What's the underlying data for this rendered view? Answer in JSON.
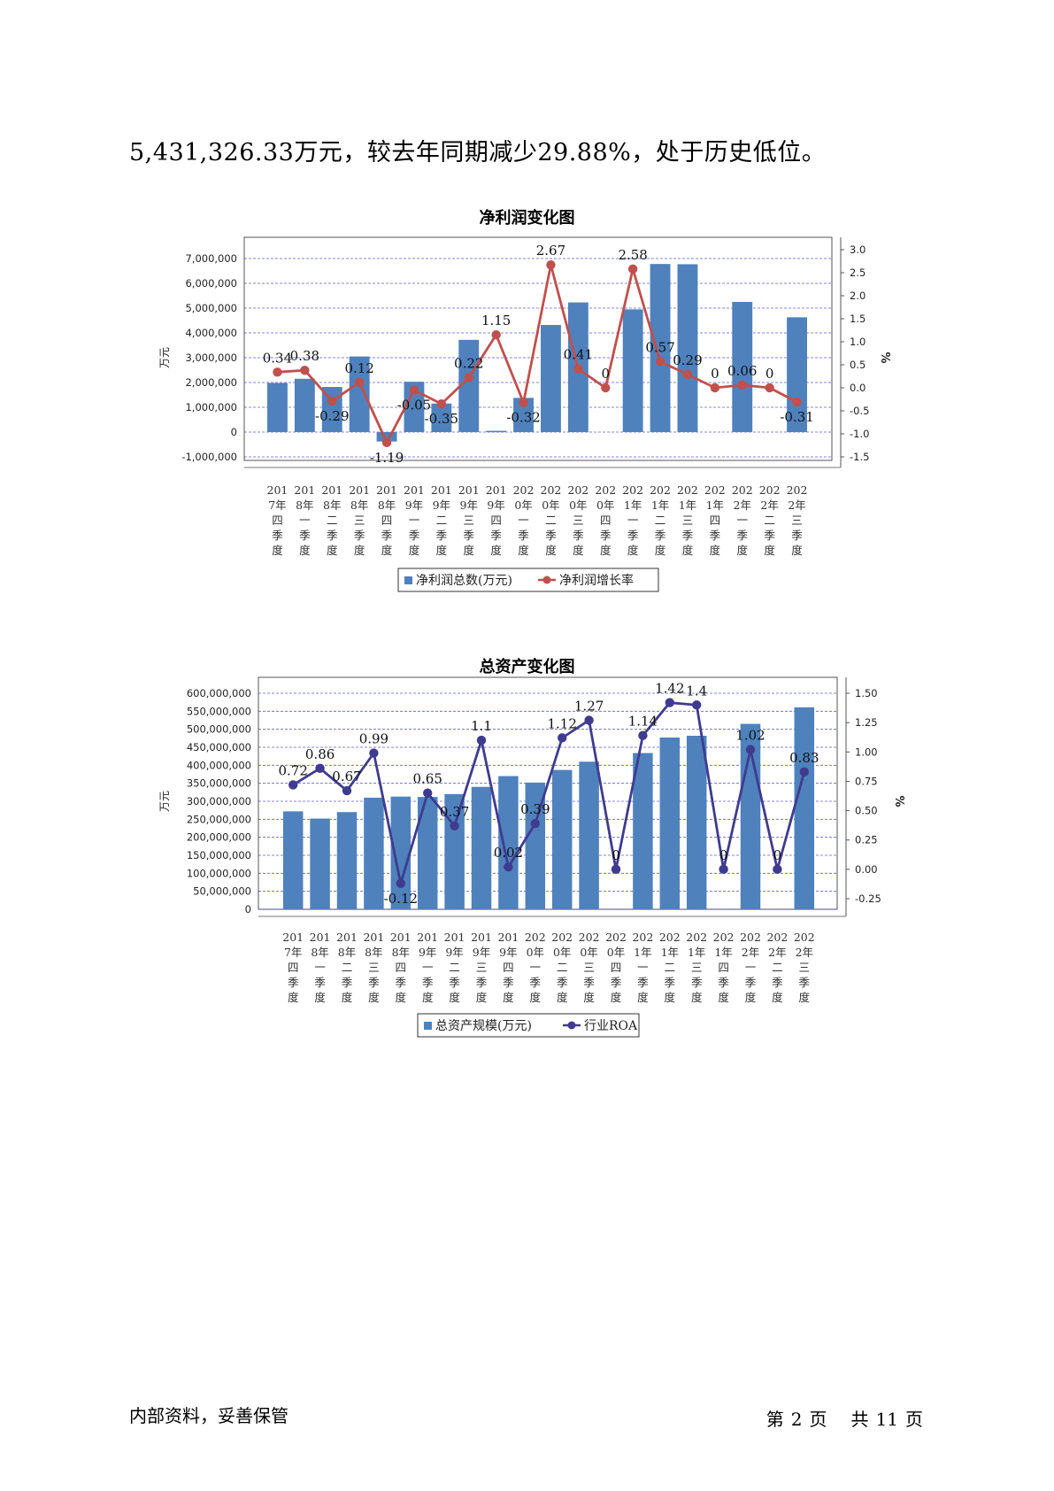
{
  "intro_text": "5,431,326.33万元，较去年同期减少29.88%，处于历史低位。",
  "footer": {
    "left": "内部资料，妥善保管",
    "page_prefix": "第",
    "page_num": "2",
    "page_suffix": "页",
    "total_prefix": "共",
    "total_num": "11",
    "total_suffix": "页"
  },
  "colors": {
    "bar": "#4f81bd",
    "line1": "#c0504d",
    "line2": "#3f3b8f",
    "grid": "#3333cc"
  },
  "chart_data": [
    {
      "type": "bar+line",
      "title": "净利润变化图",
      "ylabel": "万元",
      "y2label": "%",
      "categories": [
        "2017年四季度",
        "2018年一季度",
        "2018年二季度",
        "2018年三季度",
        "2018年四季度",
        "2019年一季度",
        "2019年二季度",
        "2019年三季度",
        "2019年四季度",
        "2020年一季度",
        "2020年二季度",
        "2020年三季度",
        "2020年四季度",
        "2021年一季度",
        "2021年二季度",
        "2021年三季度",
        "2021年四季度",
        "2022年一季度",
        "2022年二季度",
        "2022年三季度"
      ],
      "ylim": [
        -1000000,
        7000000
      ],
      "yticks": [
        -1000000,
        0,
        1000000,
        2000000,
        3000000,
        4000000,
        5000000,
        6000000,
        7000000
      ],
      "ytick_labels": [
        "-1,000,000",
        "0",
        "1,000,000",
        "2,000,000",
        "3,000,000",
        "4,000,000",
        "5,000,000",
        "6,000,000",
        "7,000,000"
      ],
      "y2lim": [
        -1.5,
        3.0
      ],
      "y2ticks": [
        -1.5,
        -1.0,
        -0.5,
        0.0,
        0.5,
        1.0,
        1.5,
        2.0,
        2.5,
        3.0
      ],
      "y2tick_labels": [
        "-1.5",
        "-1.0",
        "-0.5",
        "0.0",
        "0.5",
        "1.0",
        "1.5",
        "2.0",
        "2.5",
        "3.0"
      ],
      "series": [
        {
          "name": "净利润总数(万元)",
          "kind": "bar",
          "values": [
            1980000,
            2150000,
            1820000,
            3050000,
            -380000,
            2030000,
            1150000,
            3720000,
            50000,
            1380000,
            4320000,
            5230000,
            null,
            4950000,
            6780000,
            6770000,
            null,
            5250000,
            null,
            4630000
          ]
        },
        {
          "name": "净利润增长率",
          "kind": "line",
          "values": [
            0.34,
            0.38,
            -0.29,
            0.12,
            -1.19,
            -0.05,
            -0.35,
            0.22,
            1.15,
            -0.32,
            2.67,
            0.41,
            0,
            2.58,
            0.57,
            0.29,
            0,
            0.06,
            0,
            -0.31
          ],
          "labels": [
            "0.34",
            "0.38",
            "-0.29",
            "0.12",
            "-1.19",
            "-0.05",
            "-0.35",
            "0.22",
            "1.15",
            "-0.32",
            "2.67",
            "0.41",
            "0",
            "2.58",
            "0.57",
            "0.29",
            "0",
            "0.06",
            "0",
            "-0.31"
          ]
        }
      ],
      "grid": true,
      "legend": "bottom"
    },
    {
      "type": "bar+line",
      "title": "总资产变化图",
      "ylabel": "万元",
      "y2label": "%",
      "categories": [
        "2017年四季度",
        "2018年一季度",
        "2018年二季度",
        "2018年三季度",
        "2018年四季度",
        "2019年一季度",
        "2019年二季度",
        "2019年三季度",
        "2019年四季度",
        "2020年一季度",
        "2020年二季度",
        "2020年三季度",
        "2020年四季度",
        "2021年一季度",
        "2021年二季度",
        "2021年三季度",
        "2021年四季度",
        "2022年一季度",
        "2022年二季度",
        "2022年三季度"
      ],
      "ylim": [
        0,
        600000000
      ],
      "yticks": [
        0,
        50000000,
        100000000,
        150000000,
        200000000,
        250000000,
        300000000,
        350000000,
        400000000,
        450000000,
        500000000,
        550000000,
        600000000
      ],
      "ytick_labels": [
        "0",
        "50,000,000",
        "100,000,000",
        "150,000,000",
        "200,000,000",
        "250,000,000",
        "300,000,000",
        "350,000,000",
        "400,000,000",
        "450,000,000",
        "500,000,000",
        "550,000,000",
        "600,000,000"
      ],
      "y2lim": [
        -0.25,
        1.5
      ],
      "y2ticks": [
        -0.25,
        0.0,
        0.25,
        0.5,
        0.75,
        1.0,
        1.25,
        1.5
      ],
      "y2tick_labels": [
        "-0.25",
        "0.00",
        "0.25",
        "0.50",
        "0.75",
        "1.00",
        "1.25",
        "1.50"
      ],
      "series": [
        {
          "name": "总资产规模(万元)",
          "kind": "bar",
          "values": [
            272000000,
            252000000,
            270000000,
            310000000,
            313000000,
            312000000,
            320000000,
            340000000,
            370000000,
            352000000,
            387000000,
            410000000,
            null,
            434000000,
            477000000,
            482000000,
            null,
            515000000,
            null,
            561000000
          ]
        },
        {
          "name": "行业ROA",
          "kind": "line",
          "values": [
            0.72,
            0.86,
            0.67,
            0.99,
            -0.12,
            0.65,
            0.37,
            1.1,
            0.02,
            0.39,
            1.12,
            1.27,
            0,
            1.14,
            1.42,
            1.4,
            0,
            1.02,
            0,
            0.83
          ],
          "labels": [
            "0.72",
            "0.86",
            "0.67",
            "0.99",
            "-0.12",
            "0.65",
            "0.37",
            "1.1",
            "0.02",
            "0.39",
            "1.12",
            "1.27",
            "0",
            "1.14",
            "1.42",
            "1.4",
            "0",
            "1.02",
            "0",
            "0.83"
          ]
        }
      ],
      "grid": true,
      "legend": "bottom"
    }
  ]
}
